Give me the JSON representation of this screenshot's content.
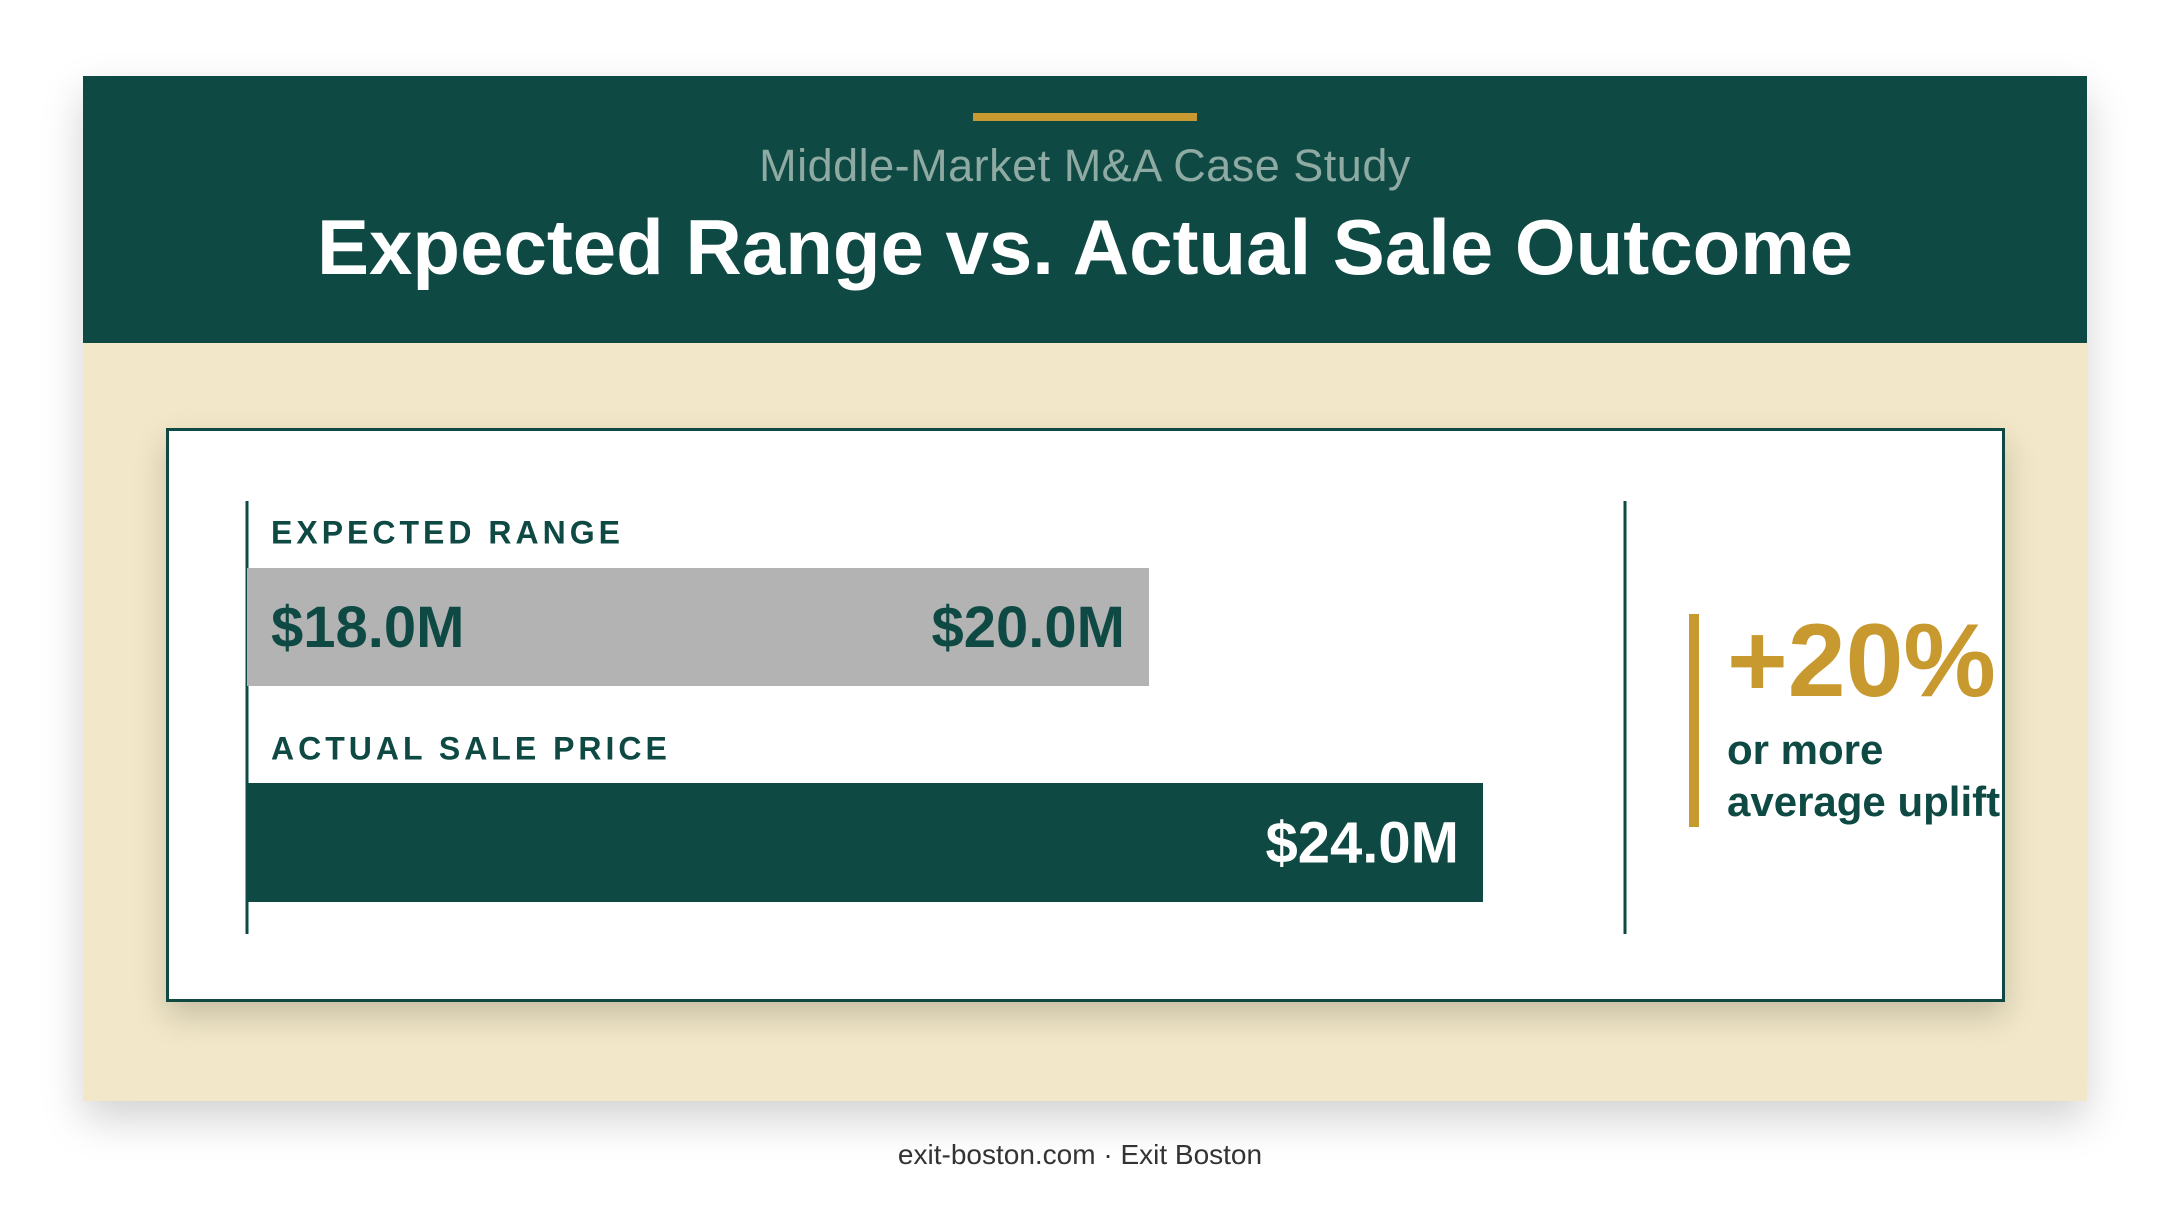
{
  "header": {
    "subtitle": "Middle-Market M&A Case Study",
    "title": "Expected Range vs. Actual Sale Outcome"
  },
  "chart_data": {
    "type": "bar",
    "categories": [
      "EXPECTED RANGE",
      "ACTUAL SALE PRICE"
    ],
    "unit": "$M",
    "series": [
      {
        "category": "EXPECTED RANGE",
        "low": 18.0,
        "high": 20.0,
        "labels": [
          "$18.0M",
          "$20.0M"
        ]
      },
      {
        "category": "ACTUAL SALE PRICE",
        "value": 24.0,
        "labels": [
          "$24.0M"
        ]
      }
    ],
    "title": "Expected Range vs. Actual Sale Outcome",
    "xlim": [
      0,
      24.0
    ],
    "grid": false
  },
  "stat": {
    "value": "+20%",
    "caption": "or more average uplift"
  },
  "footer": {
    "text": "exit-boston.com · Exit Boston"
  },
  "colors": {
    "primary": "#0e4a43",
    "accent": "#c8992f",
    "range_bar": "#b3b3b3",
    "background": "#f2e7c8"
  }
}
